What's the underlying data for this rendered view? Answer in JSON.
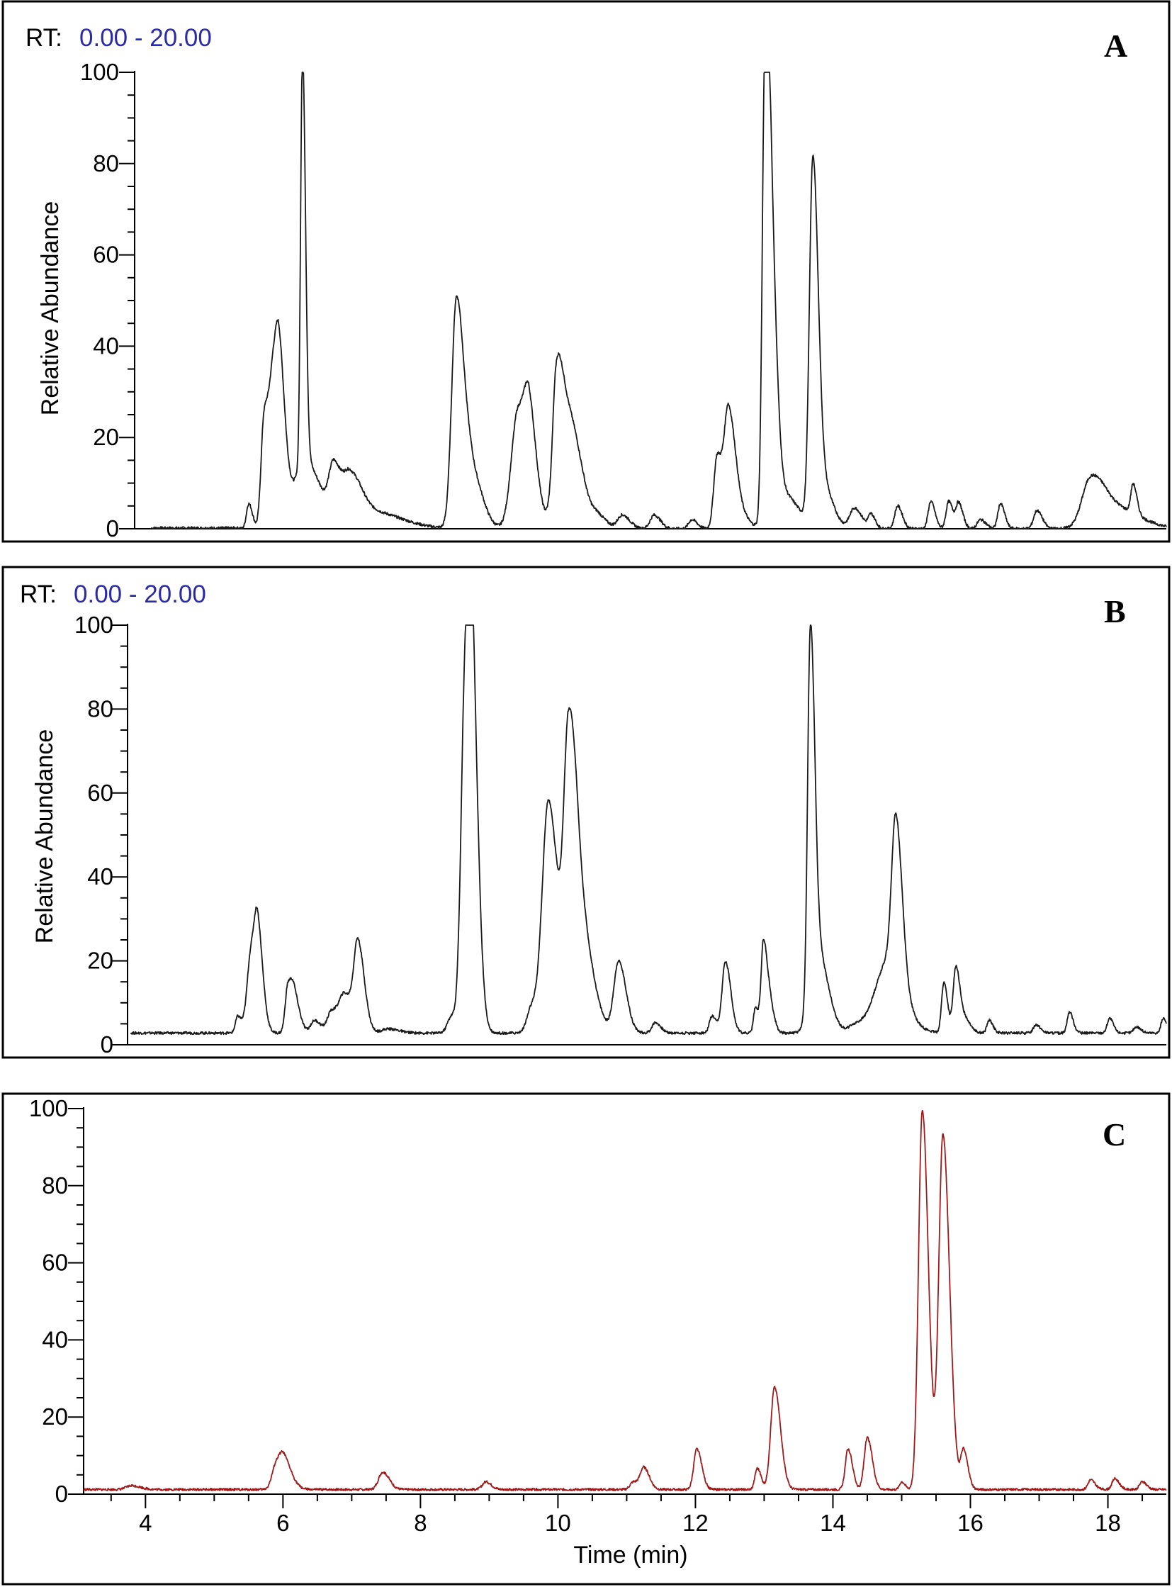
{
  "chart_data": [
    {
      "type": "line",
      "panel_label": "A",
      "rt_label": "RT:",
      "rt_range_text": "0.00 - 20.00",
      "rt_color": "#2b2ba8",
      "line_color": "#1a1a1a",
      "ylabel": "Relative Abundance",
      "xlabel": "",
      "xlim": [
        3.3,
        18.85
      ],
      "ylim": [
        0,
        100
      ],
      "yticks": [
        "0",
        "20",
        "40",
        "60",
        "80",
        "100"
      ],
      "baseline": 0,
      "peaks": [
        {
          "t": 5.02,
          "h": 5.5,
          "w": 0.035
        },
        {
          "t": 5.25,
          "h": 23,
          "w": 0.045
        },
        {
          "t": 5.4,
          "h": 30,
          "w": 0.07
        },
        {
          "t": 5.48,
          "h": 20,
          "w": 0.06
        },
        {
          "t": 5.83,
          "h": 90,
          "w": 0.028
        },
        {
          "t": 5.86,
          "h": 15,
          "w": 0.15
        },
        {
          "t": 6.3,
          "h": 11,
          "w": 0.07
        },
        {
          "t": 6.55,
          "h": 9,
          "w": 0.1
        },
        {
          "t": 6.8,
          "h": 4,
          "w": 0.3
        },
        {
          "t": 8.15,
          "h": 50,
          "w": 0.07
        },
        {
          "t": 8.38,
          "h": 12,
          "w": 0.1
        },
        {
          "t": 9.08,
          "h": 26,
          "w": 0.1
        },
        {
          "t": 9.25,
          "h": 16,
          "w": 0.07
        },
        {
          "t": 9.65,
          "h": 22,
          "w": 0.05
        },
        {
          "t": 9.8,
          "h": 27,
          "w": 0.13
        },
        {
          "t": 10.3,
          "h": 2,
          "w": 0.08
        },
        {
          "t": 10.65,
          "h": 3,
          "w": 0.07
        },
        {
          "t": 11.13,
          "h": 3,
          "w": 0.06
        },
        {
          "t": 11.7,
          "h": 2,
          "w": 0.05
        },
        {
          "t": 12.08,
          "h": 16,
          "w": 0.05
        },
        {
          "t": 12.25,
          "h": 25,
          "w": 0.06
        },
        {
          "t": 12.4,
          "h": 4,
          "w": 0.08
        },
        {
          "t": 12.8,
          "h": 99,
          "w": 0.04
        },
        {
          "t": 12.9,
          "h": 50,
          "w": 0.05
        },
        {
          "t": 13.05,
          "h": 8,
          "w": 0.15
        },
        {
          "t": 13.52,
          "h": 76,
          "w": 0.05
        },
        {
          "t": 13.65,
          "h": 10,
          "w": 0.1
        },
        {
          "t": 14.15,
          "h": 4.5,
          "w": 0.07
        },
        {
          "t": 14.4,
          "h": 3,
          "w": 0.04
        },
        {
          "t": 14.8,
          "h": 5,
          "w": 0.045
        },
        {
          "t": 15.3,
          "h": 6,
          "w": 0.04
        },
        {
          "t": 15.57,
          "h": 6,
          "w": 0.04
        },
        {
          "t": 15.72,
          "h": 5.5,
          "w": 0.04
        },
        {
          "t": 16.05,
          "h": 2,
          "w": 0.05
        },
        {
          "t": 16.35,
          "h": 5.5,
          "w": 0.04
        },
        {
          "t": 16.9,
          "h": 4,
          "w": 0.05
        },
        {
          "t": 17.7,
          "h": 9,
          "w": 0.12
        },
        {
          "t": 18.0,
          "h": 5,
          "w": 0.25
        },
        {
          "t": 18.35,
          "h": 6.5,
          "w": 0.035
        }
      ]
    },
    {
      "type": "line",
      "panel_label": "B",
      "rt_label": "RT:",
      "rt_range_text": "0.00 - 20.00",
      "rt_color": "#2b2ba8",
      "line_color": "#1a1a1a",
      "ylabel": "Relative Abundance",
      "xlabel": "",
      "xlim": [
        3.3,
        18.85
      ],
      "ylim": [
        0,
        100
      ],
      "yticks": [
        "0",
        "20",
        "40",
        "60",
        "80",
        "100"
      ],
      "baseline": 2.8,
      "peaks": [
        {
          "t": 4.95,
          "h": 4,
          "w": 0.035
        },
        {
          "t": 5.15,
          "h": 19,
          "w": 0.06
        },
        {
          "t": 5.25,
          "h": 18,
          "w": 0.05
        },
        {
          "t": 5.7,
          "h": 11,
          "w": 0.04
        },
        {
          "t": 5.8,
          "h": 8,
          "w": 0.05
        },
        {
          "t": 6.1,
          "h": 3,
          "w": 0.06
        },
        {
          "t": 6.35,
          "h": 5,
          "w": 0.06
        },
        {
          "t": 6.55,
          "h": 9,
          "w": 0.08
        },
        {
          "t": 6.75,
          "h": 20,
          "w": 0.06
        },
        {
          "t": 7.2,
          "h": 1,
          "w": 0.1
        },
        {
          "t": 8.15,
          "h": 4,
          "w": 0.06
        },
        {
          "t": 8.35,
          "h": 75,
          "w": 0.06
        },
        {
          "t": 8.45,
          "h": 70,
          "w": 0.06
        },
        {
          "t": 9.35,
          "h": 6,
          "w": 0.07
        },
        {
          "t": 9.6,
          "h": 55,
          "w": 0.09
        },
        {
          "t": 9.9,
          "h": 58,
          "w": 0.07
        },
        {
          "t": 10.05,
          "h": 28,
          "w": 0.12
        },
        {
          "t": 10.65,
          "h": 17,
          "w": 0.07
        },
        {
          "t": 11.2,
          "h": 2.5,
          "w": 0.05
        },
        {
          "t": 12.05,
          "h": 4,
          "w": 0.04
        },
        {
          "t": 12.25,
          "h": 17,
          "w": 0.05
        },
        {
          "t": 12.7,
          "h": 6,
          "w": 0.03
        },
        {
          "t": 12.82,
          "h": 22,
          "w": 0.035
        },
        {
          "t": 12.92,
          "h": 6,
          "w": 0.04
        },
        {
          "t": 13.52,
          "h": 85,
          "w": 0.04
        },
        {
          "t": 13.62,
          "h": 20,
          "w": 0.1
        },
        {
          "t": 14.2,
          "h": 2,
          "w": 0.1
        },
        {
          "t": 14.55,
          "h": 6,
          "w": 0.15
        },
        {
          "t": 14.8,
          "h": 38,
          "w": 0.06
        },
        {
          "t": 14.7,
          "h": 12,
          "w": 0.15
        },
        {
          "t": 15.52,
          "h": 12,
          "w": 0.035
        },
        {
          "t": 15.7,
          "h": 16,
          "w": 0.04
        },
        {
          "t": 15.85,
          "h": 3,
          "w": 0.05
        },
        {
          "t": 16.2,
          "h": 3,
          "w": 0.035
        },
        {
          "t": 16.9,
          "h": 2,
          "w": 0.04
        },
        {
          "t": 17.4,
          "h": 5,
          "w": 0.035
        },
        {
          "t": 18.0,
          "h": 3.5,
          "w": 0.035
        },
        {
          "t": 18.4,
          "h": 1.5,
          "w": 0.04
        },
        {
          "t": 18.8,
          "h": 3.5,
          "w": 0.03
        }
      ]
    },
    {
      "type": "line",
      "panel_label": "C",
      "line_color": "#a01a1a",
      "ylabel": "",
      "xlabel": "Time (min)",
      "xlim": [
        3.1,
        18.85
      ],
      "ylim": [
        0,
        100
      ],
      "yticks": [
        "0",
        "20",
        "40",
        "60",
        "80",
        "100"
      ],
      "xticks": [
        "4",
        "6",
        "8",
        "10",
        "12",
        "14",
        "16",
        "18"
      ],
      "baseline": 1.2,
      "peaks": [
        {
          "t": 3.8,
          "h": 1,
          "w": 0.08
        },
        {
          "t": 5.9,
          "h": 6,
          "w": 0.06
        },
        {
          "t": 6.02,
          "h": 6.5,
          "w": 0.07
        },
        {
          "t": 7.45,
          "h": 4.5,
          "w": 0.06
        },
        {
          "t": 8.95,
          "h": 2,
          "w": 0.05
        },
        {
          "t": 11.1,
          "h": 2,
          "w": 0.05
        },
        {
          "t": 11.25,
          "h": 5.5,
          "w": 0.05
        },
        {
          "t": 12.02,
          "h": 10.5,
          "w": 0.045
        },
        {
          "t": 12.9,
          "h": 5.5,
          "w": 0.035
        },
        {
          "t": 13.15,
          "h": 26.5,
          "w": 0.055
        },
        {
          "t": 14.22,
          "h": 10.5,
          "w": 0.04
        },
        {
          "t": 14.5,
          "h": 13.5,
          "w": 0.045
        },
        {
          "t": 15.0,
          "h": 2,
          "w": 0.03
        },
        {
          "t": 15.3,
          "h": 98.5,
          "w": 0.055
        },
        {
          "t": 15.6,
          "h": 92,
          "w": 0.06
        },
        {
          "t": 15.9,
          "h": 10,
          "w": 0.04
        },
        {
          "t": 17.75,
          "h": 2.5,
          "w": 0.04
        },
        {
          "t": 18.1,
          "h": 2.8,
          "w": 0.04
        },
        {
          "t": 18.5,
          "h": 2,
          "w": 0.04
        }
      ]
    }
  ]
}
